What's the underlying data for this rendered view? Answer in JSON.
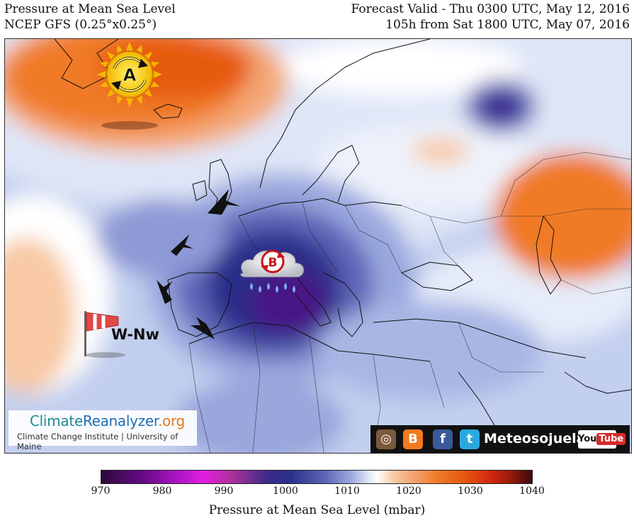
{
  "header": {
    "title": "Pressure at Mean Sea Level",
    "model": "NCEP GFS (0.25°x0.25°)",
    "valid": "Forecast Valid - Thu 0300 UTC, May 12, 2016",
    "lead": "105h from Sat 1800 UTC, May 07, 2016"
  },
  "map": {
    "high_label": "A",
    "low_label": "B",
    "wind_label": "W-Nw",
    "icons": [
      "high-pressure-sun-icon",
      "low-pressure-rain-cloud-icon",
      "windsock-icon",
      "wind-arrow-icon"
    ]
  },
  "credit": {
    "brand_1": "Climate",
    "brand_2": "Reanalyzer",
    "brand_3": ".org",
    "subtitle": "Climate Change Institute | University of Maine"
  },
  "social": {
    "name": "Meteosojuela",
    "youtube_1": "You",
    "youtube_2": "Tube",
    "icons": [
      "instagram-icon",
      "blogger-icon",
      "facebook-icon",
      "twitter-icon",
      "youtube-icon"
    ]
  },
  "colorbar": {
    "label": "Pressure at Mean Sea Level (mbar)",
    "ticks": [
      "970",
      "980",
      "990",
      "1000",
      "1010",
      "1020",
      "1030",
      "1040"
    ]
  },
  "colors": {
    "low_deep": "#5a0a82",
    "low": "#2b2f8a",
    "mid": "#b8c6ea",
    "neutral": "#ffffff",
    "high": "#f07a28",
    "high_deep": "#e65a10"
  }
}
